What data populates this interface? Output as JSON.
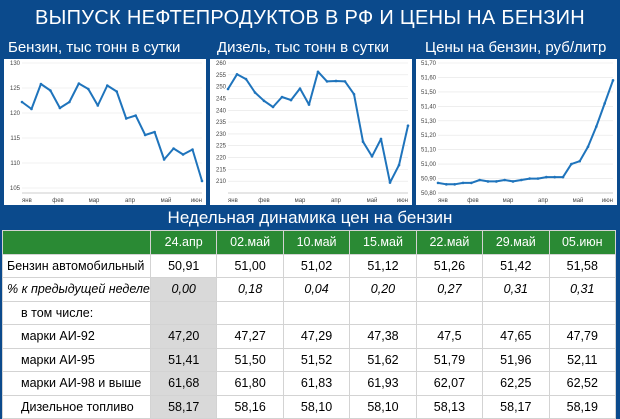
{
  "banner": {
    "title": "ВЫПУСК НЕФТЕПРОДУКТОВ В РФ И ЦЕНЫ НА БЕНЗИН"
  },
  "colors": {
    "background": "#0b4a8c",
    "line": "#1f74bc",
    "table_header": "#2a8a34",
    "highlight_column": "#d9d9d9"
  },
  "chart_data": [
    {
      "type": "line",
      "title": "Бензин, тыс тонн в сутки",
      "ylim": [
        104,
        130
      ],
      "yticks": [
        105,
        110,
        115,
        120,
        125,
        130
      ],
      "xticks": [
        "янв",
        "фев",
        "мар",
        "апр",
        "май",
        "июн"
      ],
      "grid": true,
      "values": [
        122.2,
        120.8,
        125.8,
        124.5,
        121.0,
        122.2,
        125.9,
        124.8,
        121.5,
        125.5,
        124.3,
        118.9,
        119.5,
        115.6,
        116.2,
        110.7,
        112.9,
        111.7,
        112.7,
        106.4
      ]
    },
    {
      "type": "line",
      "title": "Дизель, тыс тонн в сутки",
      "ylim": [
        205,
        260
      ],
      "yticks": [
        210,
        215,
        220,
        225,
        230,
        235,
        240,
        245,
        250,
        255,
        260
      ],
      "xticks": [
        "янв",
        "фев",
        "мар",
        "апр",
        "май",
        "июн"
      ],
      "grid": true,
      "values": [
        249.0,
        255.2,
        253.2,
        247.5,
        244.0,
        241.4,
        245.6,
        244.3,
        249.2,
        242.4,
        256.3,
        252.2,
        252.4,
        252.2,
        246.8,
        226.7,
        220.5,
        227.9,
        209.4,
        216.8,
        233.5
      ]
    },
    {
      "type": "line",
      "title": "Цены на бензин, руб/литр",
      "ylim": [
        50.8,
        51.7
      ],
      "yticks": [
        "50,80",
        "50,90",
        "51,00",
        "51,10",
        "51,20",
        "51,30",
        "51,40",
        "51,50",
        "51,60",
        "51,70"
      ],
      "xticks": [
        "янв",
        "фев",
        "мар",
        "апр",
        "май",
        "июн"
      ],
      "grid": true,
      "values": [
        50.87,
        50.86,
        50.86,
        50.87,
        50.87,
        50.89,
        50.88,
        50.88,
        50.89,
        50.88,
        50.89,
        50.9,
        50.9,
        50.91,
        50.91,
        50.91,
        51.0,
        51.02,
        51.12,
        51.26,
        51.42,
        51.58
      ]
    },
    {
      "type": "table",
      "title": "Недельная динамика цен на бензин",
      "columns": [
        "24.апр",
        "02.май",
        "10.май",
        "15.май",
        "22.май",
        "29.май",
        "05.июн"
      ],
      "rows": [
        {
          "label": "Бензин автомобильный",
          "values": [
            "50,91",
            "51,00",
            "51,02",
            "51,12",
            "51,26",
            "51,42",
            "51,58"
          ]
        },
        {
          "label": "% к предыдущей неделе",
          "values": [
            "0,00",
            "0,18",
            "0,04",
            "0,20",
            "0,27",
            "0,31",
            "0,31"
          ]
        },
        {
          "label": "в том числе:",
          "values": [
            "",
            "",
            "",
            "",
            "",
            "",
            ""
          ]
        },
        {
          "label": "марки АИ-92",
          "values": [
            "47,20",
            "47,27",
            "47,29",
            "47,38",
            "47,5",
            "47,65",
            "47,79"
          ]
        },
        {
          "label": "марки АИ-95",
          "values": [
            "51,41",
            "51,50",
            "51,52",
            "51,62",
            "51,79",
            "51,96",
            "52,11"
          ]
        },
        {
          "label": "марки АИ-98 и выше",
          "values": [
            "61,68",
            "61,80",
            "61,83",
            "61,93",
            "62,07",
            "62,25",
            "62,52"
          ]
        },
        {
          "label": "Дизельное топливо",
          "values": [
            "58,17",
            "58,16",
            "58,10",
            "58,10",
            "58,13",
            "58,17",
            "58,19"
          ]
        }
      ]
    }
  ]
}
